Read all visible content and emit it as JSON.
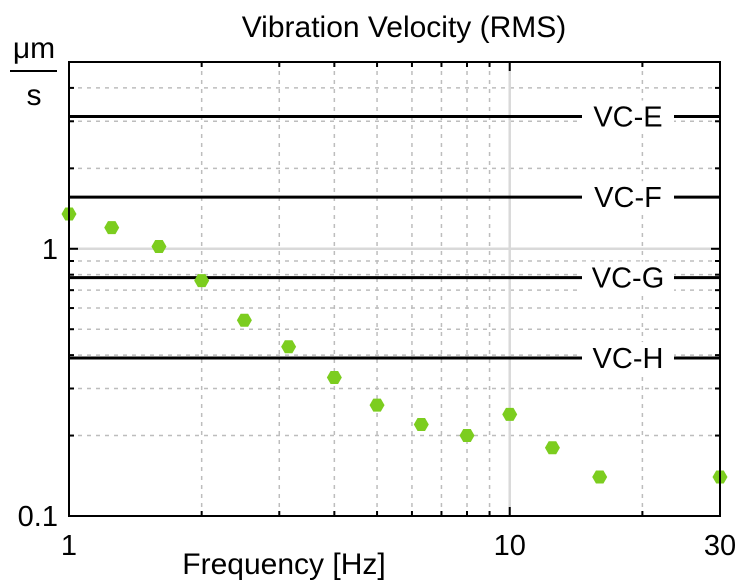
{
  "chart_data": {
    "type": "scatter",
    "title": "Vibration Velocity (RMS)",
    "xlabel": "Frequency [Hz]",
    "ylabel_numerator": "μm",
    "ylabel_denominator": "s",
    "x_scale": "log",
    "y_scale": "log",
    "xlim": [
      1,
      30
    ],
    "ylim": [
      0.1,
      5.0
    ],
    "x_ticks": [
      {
        "value": 1,
        "label": "1"
      },
      {
        "value": 10,
        "label": "10"
      },
      {
        "value": 30,
        "label": "30"
      }
    ],
    "y_ticks": [
      {
        "value": 0.1,
        "label": "0.1"
      },
      {
        "value": 1,
        "label": "1"
      }
    ],
    "grid": true,
    "marker_color": "#7ccd1f",
    "reference_line_color": "#000000",
    "reference_lines": [
      {
        "label": "VC-E",
        "value": 3.125
      },
      {
        "label": "VC-F",
        "value": 1.56
      },
      {
        "label": "VC-G",
        "value": 0.78
      },
      {
        "label": "VC-H",
        "value": 0.39
      }
    ],
    "series": [
      {
        "x": [
          1.0,
          1.25,
          1.6,
          2.0,
          2.5,
          3.15,
          4.0,
          5.0,
          6.3,
          8.0,
          10.0,
          12.5,
          16.0,
          30.0
        ],
        "y": [
          1.35,
          1.2,
          1.02,
          0.76,
          0.54,
          0.43,
          0.33,
          0.26,
          0.22,
          0.2,
          0.24,
          0.18,
          0.14,
          0.14
        ]
      }
    ]
  }
}
